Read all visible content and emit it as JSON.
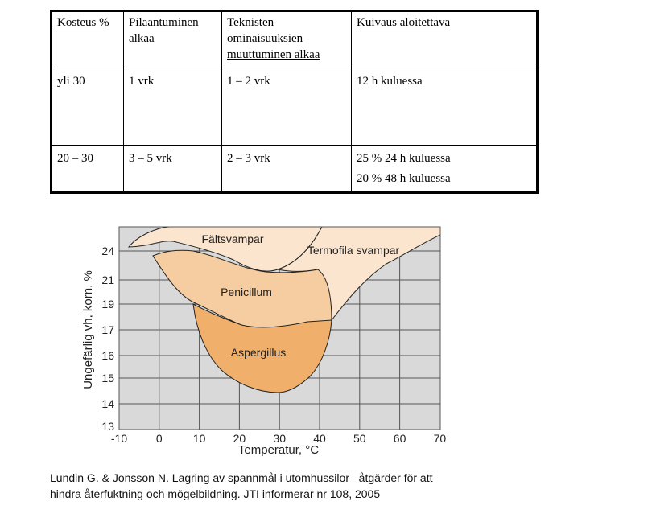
{
  "table": {
    "headers": [
      "Kosteus %",
      "Pilaantuminen alkaa",
      "Teknisten ominaisuuksien muuttuminen alkaa",
      "Kuivaus aloitettava"
    ],
    "header_lines": [
      [
        "Kosteus %"
      ],
      [
        "Pilaantuminen",
        "alkaa"
      ],
      [
        "Teknisten",
        "ominaisuuksien",
        "muuttuminen alkaa"
      ],
      [
        "Kuivaus aloitettava"
      ]
    ],
    "rows": [
      [
        [
          "yli 30"
        ],
        [
          "1 vrk"
        ],
        [
          "1 – 2 vrk"
        ],
        [
          "12 h kuluessa"
        ]
      ],
      [
        [
          "20 – 30"
        ],
        [
          "3 – 5 vrk"
        ],
        [
          "2 – 3 vrk"
        ],
        [
          "25 % 24 h kuluessa",
          "20 % 48 h kuluessa"
        ]
      ]
    ]
  },
  "diagram": {
    "xlabel": "Temperatur, °C",
    "ylabel": "Ungefärlig vh, korn, %",
    "x_ticks": [
      -10,
      0,
      10,
      20,
      30,
      40,
      50,
      60,
      70
    ],
    "y_ticks": [
      13,
      14,
      15,
      16,
      17,
      19,
      21,
      24
    ],
    "regions": [
      {
        "label": "Fältsvampar",
        "color": "#fbe5cf"
      },
      {
        "label": "Termofila svampar",
        "color": "#fbe5cf"
      },
      {
        "label": "Penicillum",
        "color": "#f6cda0"
      },
      {
        "label": "Aspergillus",
        "color": "#f0b06c"
      }
    ]
  },
  "caption": {
    "line1": "Lundin G. & Jonsson N. Lagring av spannmål i utomhussilor– åtgärder för att",
    "line2": "hindra återfuktning och mögelbildning. JTI informerar nr 108, 2005"
  }
}
